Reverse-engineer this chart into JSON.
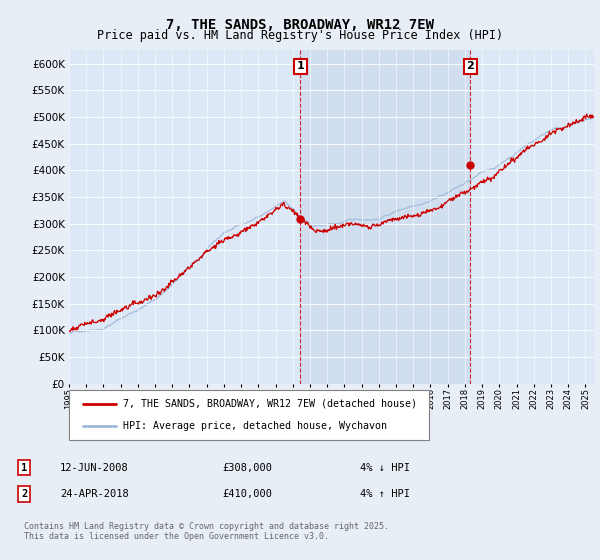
{
  "title": "7, THE SANDS, BROADWAY, WR12 7EW",
  "subtitle": "Price paid vs. HM Land Registry's House Price Index (HPI)",
  "ylim": [
    0,
    625000
  ],
  "yticks": [
    0,
    50000,
    100000,
    150000,
    200000,
    250000,
    300000,
    350000,
    400000,
    450000,
    500000,
    550000,
    600000
  ],
  "xstart_year": 1995,
  "xend_year": 2025,
  "sale1_year": 2008.44,
  "sale1_price": 308000,
  "sale1_label": "1",
  "sale2_year": 2018.31,
  "sale2_price": 410000,
  "sale2_label": "2",
  "hpi_color": "#a0b8d8",
  "price_color": "#cc0000",
  "background_color": "#e8eef5",
  "plot_bg_color": "#dce8f5",
  "shade_color": "#c8d8ec",
  "legend_line1": "7, THE SANDS, BROADWAY, WR12 7EW (detached house)",
  "legend_line2": "HPI: Average price, detached house, Wychavon",
  "table_row1_num": "1",
  "table_row1_date": "12-JUN-2008",
  "table_row1_price": "£308,000",
  "table_row1_hpi": "4% ↓ HPI",
  "table_row2_num": "2",
  "table_row2_date": "24-APR-2018",
  "table_row2_price": "£410,000",
  "table_row2_hpi": "4% ↑ HPI",
  "footer": "Contains HM Land Registry data © Crown copyright and database right 2025.\nThis data is licensed under the Open Government Licence v3.0.",
  "title_fontsize": 10,
  "subtitle_fontsize": 8.5
}
